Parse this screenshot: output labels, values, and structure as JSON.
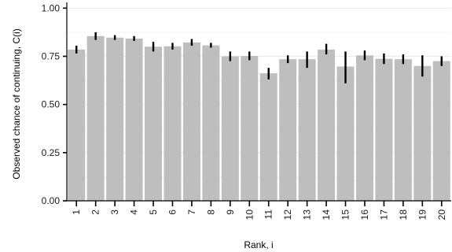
{
  "chart_data": {
    "type": "bar",
    "xlabel": "Rank, i",
    "ylabel": "Observed chance of continuing, C(i)",
    "ylim": [
      0,
      1.03
    ],
    "yticks": [
      0.0,
      0.25,
      0.5,
      0.75,
      1.0
    ],
    "ytick_labels": [
      "0.00",
      "0.25",
      "0.50",
      "0.75",
      "1.00"
    ],
    "categories": [
      "1",
      "2",
      "3",
      "4",
      "5",
      "6",
      "7",
      "8",
      "9",
      "10",
      "11",
      "12",
      "13",
      "14",
      "15",
      "16",
      "17",
      "18",
      "19",
      "20"
    ],
    "values": [
      0.785,
      0.855,
      0.847,
      0.842,
      0.8,
      0.802,
      0.822,
      0.807,
      0.75,
      0.752,
      0.662,
      0.735,
      0.735,
      0.785,
      0.697,
      0.755,
      0.737,
      0.735,
      0.7,
      0.725
    ],
    "error_low": [
      0.765,
      0.835,
      0.835,
      0.83,
      0.775,
      0.785,
      0.805,
      0.795,
      0.725,
      0.73,
      0.63,
      0.715,
      0.69,
      0.76,
      0.61,
      0.73,
      0.71,
      0.71,
      0.645,
      0.7
    ],
    "error_high": [
      0.805,
      0.875,
      0.86,
      0.855,
      0.825,
      0.82,
      0.84,
      0.82,
      0.775,
      0.775,
      0.69,
      0.755,
      0.775,
      0.815,
      0.775,
      0.78,
      0.765,
      0.76,
      0.755,
      0.75
    ],
    "grid": true,
    "colors": {
      "bar": "#bebebe",
      "error_bar": "#000000",
      "grid": "#ebebeb",
      "axis": "#000000"
    }
  }
}
